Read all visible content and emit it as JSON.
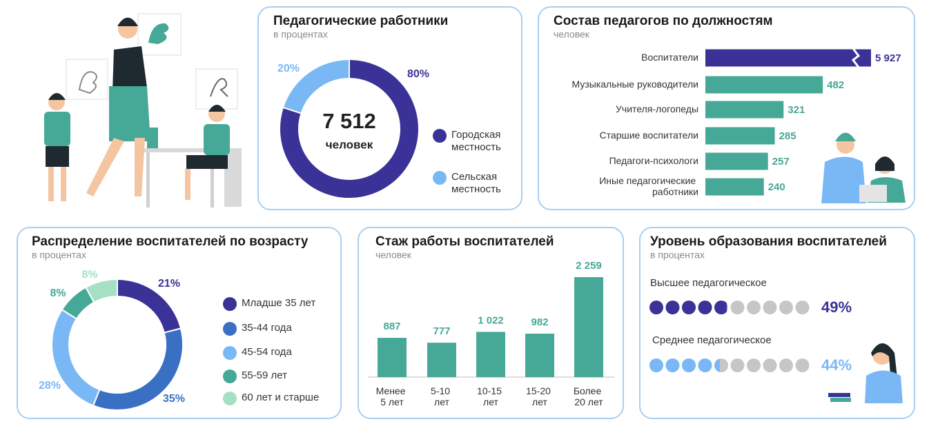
{
  "chart_data": [
    {
      "type": "donut",
      "title": "Педагогические работники",
      "subtitle": "в процентах",
      "total": {
        "value": 7512,
        "label": "7 512"
      },
      "total_text": "человек",
      "categories": [
        "Городская местность",
        "Сельская местность"
      ],
      "values": [
        80,
        20
      ],
      "value_labels": [
        "80%",
        "20%"
      ],
      "colors": [
        "#3a3296",
        "#7ab8f5"
      ]
    },
    {
      "type": "hbar",
      "title": "Состав педагогов по должностям",
      "subtitle": "человек",
      "categories": [
        "Воспитатели",
        "Музыкальные руководители",
        "Учителя-логопеды",
        "Старшие воспитатели",
        "Педагоги-психологи",
        "Иные педагогические работники"
      ],
      "values": [
        5927,
        482,
        321,
        285,
        257,
        240
      ],
      "value_labels": [
        "5 927",
        "482",
        "321",
        "285",
        "257",
        "240"
      ],
      "colors": [
        "#3a3296",
        "#46a896",
        "#46a896",
        "#46a896",
        "#46a896",
        "#46a896"
      ],
      "xlim": [
        0,
        680
      ],
      "axis_break": true
    },
    {
      "type": "donut",
      "title": "Распределение воспитателей по возрасту",
      "subtitle": "в процентах",
      "categories": [
        "Младше 35 лет",
        "35-44 года",
        "45-54 года",
        "55-59 лет",
        "60 лет и старше"
      ],
      "values": [
        21,
        35,
        28,
        8,
        8
      ],
      "value_labels": [
        "21%",
        "35%",
        "28%",
        "8%",
        "8%"
      ],
      "colors": [
        "#3a3296",
        "#3a70c4",
        "#7ab8f5",
        "#46a896",
        "#a6e0c4"
      ]
    },
    {
      "type": "bar",
      "title": "Стаж работы воспитателей",
      "subtitle": "человек",
      "categories": [
        "Менее 5 лет",
        "5-10 лет",
        "10-15 лет",
        "15-20 лет",
        "Более 20 лет"
      ],
      "values": [
        887,
        777,
        1022,
        982,
        2259
      ],
      "value_labels": [
        "887",
        "777",
        "1 022",
        "982",
        "2 259"
      ],
      "color": "#46a896",
      "ylim": [
        0,
        2400
      ]
    },
    {
      "type": "dots",
      "title": "Уровень образования воспитателей",
      "subtitle": "в процентах",
      "categories": [
        "Высшее педагогическое",
        "Среднее педагогическое"
      ],
      "values": [
        49,
        44
      ],
      "value_labels": [
        "49%",
        "44%"
      ],
      "colors": [
        "#3a3296",
        "#7ab8f5"
      ],
      "xlim": [
        0,
        100
      ]
    }
  ]
}
